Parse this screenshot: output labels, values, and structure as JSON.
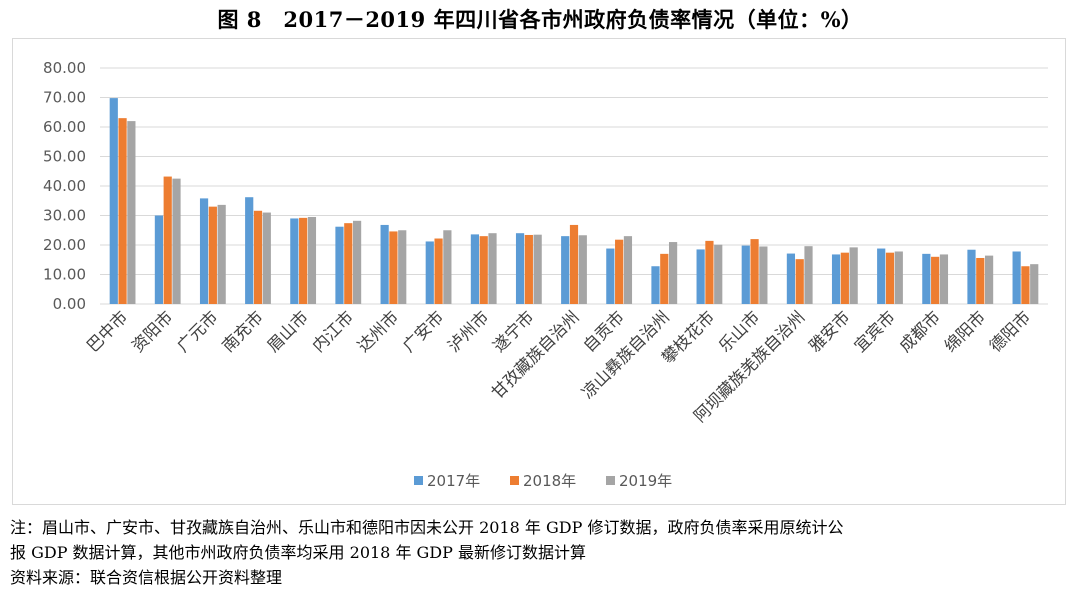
{
  "title": "图 8　2017－2019 年四川省各市州政府负债率情况（单位：%）",
  "notes": {
    "line1": "注：眉山市、广安市、甘孜藏族自治州、乐山市和德阳市因未公开 2018 年 GDP 修订数据，政府负债率采用原统计公",
    "line2": "报 GDP 数据计算，其他市州政府负债率均采用 2018 年 GDP 最新修订数据计算",
    "line3": "资料来源：联合资信根据公开资料整理"
  },
  "chart_data": {
    "type": "bar",
    "title": "",
    "xlabel": "",
    "ylabel": "",
    "ylim": [
      0,
      80
    ],
    "yticks": [
      "0.00",
      "10.00",
      "20.00",
      "30.00",
      "40.00",
      "50.00",
      "60.00",
      "70.00",
      "80.00"
    ],
    "grid": true,
    "legend": "bottom",
    "categories": [
      "巴中市",
      "资阳市",
      "广元市",
      "南充市",
      "眉山市",
      "内江市",
      "达州市",
      "广安市",
      "泸州市",
      "遂宁市",
      "甘孜藏族自治州",
      "自贡市",
      "凉山彝族自治州",
      "攀枝花市",
      "乐山市",
      "阿坝藏族羌族自治州",
      "雅安市",
      "宜宾市",
      "成都市",
      "绵阳市",
      "德阳市"
    ],
    "series": [
      {
        "name": "2017年",
        "color": "#5b9bd5",
        "values": [
          69.8,
          30.0,
          35.8,
          36.2,
          29.0,
          26.2,
          26.8,
          21.2,
          23.6,
          24.0,
          23.0,
          18.8,
          12.8,
          18.5,
          19.8,
          17.1,
          16.8,
          18.8,
          17.0,
          18.4,
          17.8
        ]
      },
      {
        "name": "2018年",
        "color": "#ed7d31",
        "values": [
          63.0,
          43.2,
          33.0,
          31.6,
          29.2,
          27.4,
          24.6,
          22.2,
          23.0,
          23.4,
          26.8,
          21.8,
          17.0,
          21.4,
          22.0,
          15.2,
          17.4,
          17.4,
          16.0,
          15.6,
          12.8
        ]
      },
      {
        "name": "2019年",
        "color": "#a5a5a5",
        "values": [
          62.0,
          42.5,
          33.6,
          31.0,
          29.5,
          28.2,
          25.0,
          25.0,
          24.0,
          23.5,
          23.3,
          23.0,
          21.0,
          20.1,
          19.5,
          19.6,
          19.2,
          17.8,
          16.8,
          16.4,
          13.5
        ]
      }
    ]
  }
}
